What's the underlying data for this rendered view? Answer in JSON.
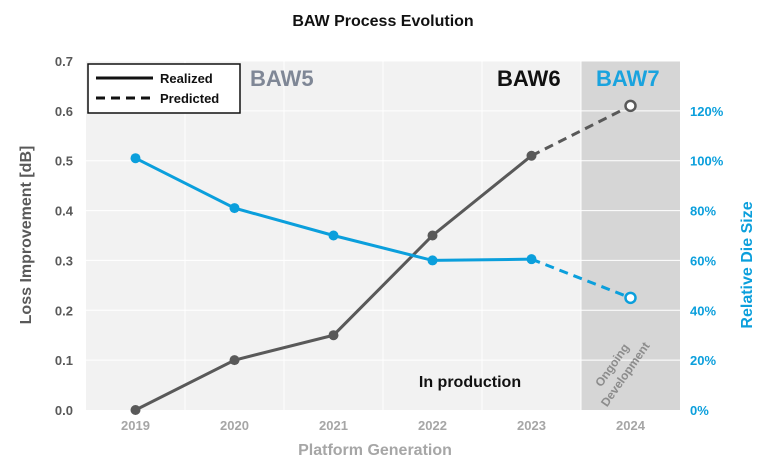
{
  "chart_data": {
    "type": "line",
    "title": "BAW Process Evolution",
    "xlabel": "Platform Generation",
    "ylabel_left": "Loss Improvement [dB]",
    "ylabel_right": "Relative Die Size",
    "categories": [
      "2019",
      "2020",
      "2021",
      "2022",
      "2023",
      "2024"
    ],
    "ylim_left": [
      0,
      0.7
    ],
    "yticks_left": [
      "0.0",
      "0.1",
      "0.2",
      "0.3",
      "0.4",
      "0.5",
      "0.6",
      "0.7"
    ],
    "ylim_right": [
      0,
      140
    ],
    "yticks_right": [
      "0%",
      "20%",
      "40%",
      "60%",
      "80%",
      "100%",
      "120%"
    ],
    "series": [
      {
        "name": "Loss Improvement [dB]",
        "axis": "left",
        "color": "#595959",
        "realized": [
          0.0,
          0.1,
          0.15,
          0.35,
          0.51
        ],
        "predicted": [
          null,
          null,
          null,
          null,
          0.51,
          0.61
        ]
      },
      {
        "name": "Relative Die Size",
        "axis": "right",
        "color": "#0b9fdc",
        "realized": [
          101,
          81,
          70,
          60,
          60.5
        ],
        "predicted": [
          null,
          null,
          null,
          null,
          60.5,
          45
        ]
      }
    ],
    "legend": {
      "position": "top-left",
      "realized": "Realized",
      "predicted": "Predicted"
    },
    "regions": [
      {
        "label": "BAW5",
        "color": "#7f8796"
      },
      {
        "label": "BAW6",
        "color": "#111111"
      },
      {
        "label": "BAW7",
        "color": "#1aa3de"
      }
    ],
    "annotations": {
      "production": "In production",
      "ongoing": "Ongoing Development"
    },
    "colors": {
      "plot_bg": "#f2f2f2",
      "dev_bg": "#d6d6d6",
      "grid": "#ffffff",
      "axis_text": "#595959",
      "xlabel": "#a6a6a6",
      "right_axis": "#0b9fdc"
    }
  }
}
